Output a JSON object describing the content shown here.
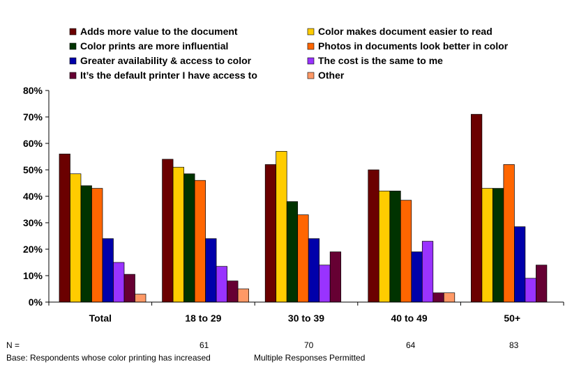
{
  "chart_data": {
    "type": "bar",
    "title": "",
    "xlabel": "",
    "ylabel": "",
    "ylim": [
      0,
      80
    ],
    "ytick_values": [
      0,
      10,
      20,
      30,
      40,
      50,
      60,
      70,
      80
    ],
    "ytick_labels": [
      "0%",
      "10%",
      "20%",
      "30%",
      "40%",
      "50%",
      "60%",
      "70%",
      "80%"
    ],
    "grid": false,
    "legend_position": "top",
    "categories": [
      "Total",
      "18 to 29",
      "30 to 39",
      "40 to 49",
      "50+"
    ],
    "series": [
      {
        "name": "Adds more value to the document",
        "color": "#6b0000",
        "values": [
          56,
          54,
          52,
          50,
          71
        ]
      },
      {
        "name": "Color makes document easier to read",
        "color": "#ffcc00",
        "values": [
          48.5,
          51,
          57,
          42,
          43
        ]
      },
      {
        "name": "Color prints are more influential",
        "color": "#003300",
        "values": [
          44,
          48.5,
          38,
          42,
          43
        ]
      },
      {
        "name": "Photos in documents look better in color",
        "color": "#ff6600",
        "values": [
          43,
          46,
          33,
          38.5,
          52
        ]
      },
      {
        "name": "Greater availability & access to color",
        "color": "#0000aa",
        "values": [
          24,
          24,
          24,
          19,
          28.5
        ]
      },
      {
        "name": "The cost is the same to me",
        "color": "#9933ff",
        "values": [
          15,
          13.5,
          14,
          23,
          9
        ]
      },
      {
        "name": "It’s the default printer I have access to",
        "color": "#660033",
        "values": [
          10.5,
          8,
          19,
          3.5,
          14
        ]
      },
      {
        "name": "Other",
        "color": "#ff9966",
        "values": [
          3,
          5,
          0,
          3.5,
          0
        ]
      }
    ]
  },
  "footer": {
    "n_label": "N =",
    "n_values": [
      "",
      "61",
      "70",
      "64",
      "83"
    ],
    "base_text": "Base: Respondents whose color printing has increased",
    "multiple_text": "Multiple Responses Permitted"
  }
}
